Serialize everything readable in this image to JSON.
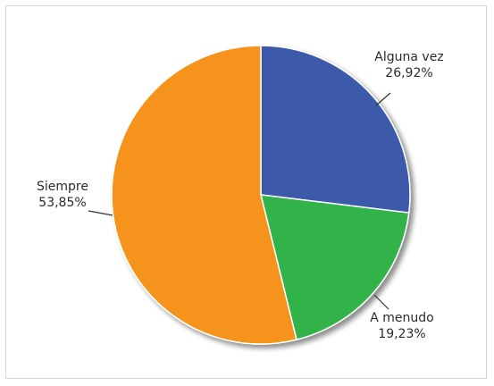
{
  "chart_data": {
    "type": "pie",
    "slices": [
      {
        "name": "Alguna vez",
        "percent_label": "26,92%",
        "value": 26.92,
        "color": "#3c5aaa"
      },
      {
        "name": "A menudo",
        "percent_label": "19,23%",
        "value": 19.23,
        "color": "#33b34a"
      },
      {
        "name": "Siempre",
        "percent_label": "53,85%",
        "value": 53.85,
        "color": "#f6931e"
      }
    ],
    "start_angle_deg": 0,
    "direction": "clockwise",
    "shadow": true,
    "legend": "none"
  }
}
